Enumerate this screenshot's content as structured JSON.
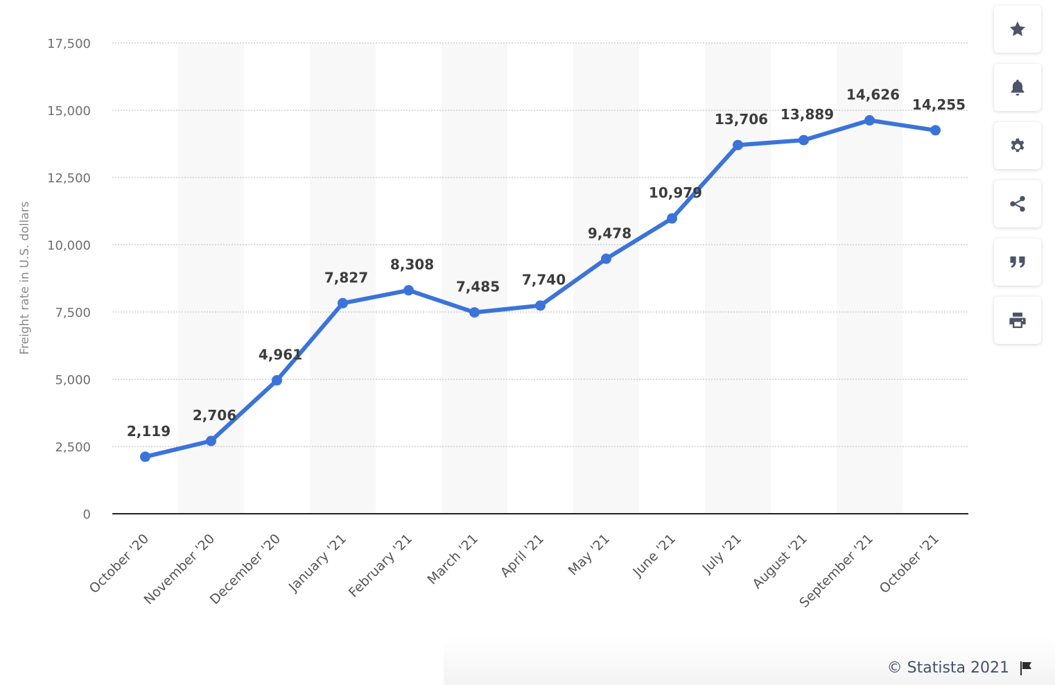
{
  "chart_data": {
    "type": "line",
    "categories": [
      "October '20",
      "November '20",
      "December '20",
      "January '21",
      "February '21",
      "March '21",
      "April '21",
      "May '21",
      "June '21",
      "July '21",
      "August '21",
      "September '21",
      "October '21"
    ],
    "series": [
      {
        "values": [
          2119,
          2706,
          4961,
          7827,
          8308,
          7485,
          7740,
          9478,
          10979,
          13706,
          13889,
          14626,
          14255
        ]
      }
    ],
    "data_labels": [
      "2,119",
      "2,706",
      "4,961",
      "7,827",
      "8,308",
      "7,485",
      "7,740",
      "9,478",
      "10,979",
      "13,706",
      "13,889",
      "14,626",
      "14,255"
    ],
    "y_ticks": [
      0,
      2500,
      5000,
      7500,
      10000,
      12500,
      15000,
      17500
    ],
    "y_tick_labels": [
      "0",
      "2,500",
      "5,000",
      "7,500",
      "10,000",
      "12,500",
      "15,000",
      "17,500"
    ],
    "ylim": [
      0,
      17500
    ],
    "ylabel": "Freight rate in U.S. dollars",
    "grid": true,
    "line_color": "#3b73d9"
  },
  "toolbar": [
    {
      "name": "favorite-button",
      "icon": "star-icon"
    },
    {
      "name": "notification-button",
      "icon": "bell-icon"
    },
    {
      "name": "settings-button",
      "icon": "gear-icon"
    },
    {
      "name": "share-button",
      "icon": "share-icon"
    },
    {
      "name": "cite-button",
      "icon": "quote-icon"
    },
    {
      "name": "print-button",
      "icon": "printer-icon"
    }
  ],
  "footer": {
    "copyright": "© Statista 2021",
    "icon": "flag-icon"
  }
}
